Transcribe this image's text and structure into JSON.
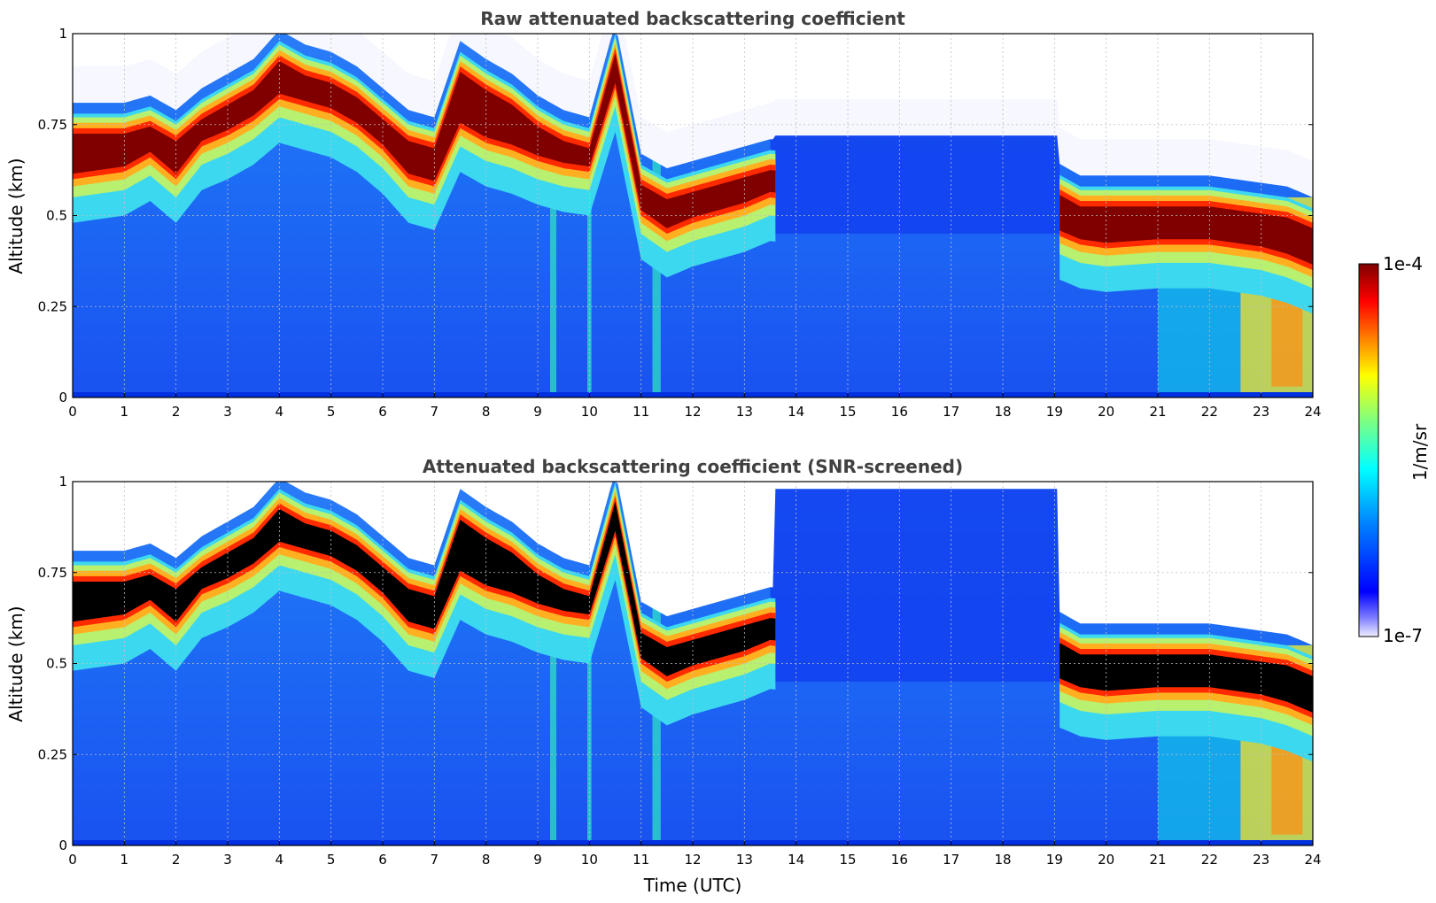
{
  "chart_data": [
    {
      "type": "heatmap",
      "title": "Raw attenuated backscattering coefficient",
      "xlabel": "",
      "ylabel": "Altitude (km)",
      "xlim": [
        0,
        24
      ],
      "ylim": [
        0,
        1
      ],
      "x_ticks": [
        0,
        1,
        2,
        3,
        4,
        5,
        6,
        7,
        8,
        9,
        10,
        11,
        12,
        13,
        14,
        15,
        16,
        17,
        18,
        19,
        20,
        21,
        22,
        23,
        24
      ],
      "y_ticks": [
        "0",
        "0.25",
        "0.5",
        "0.75",
        "1"
      ],
      "grid": true,
      "colorscale": "jet",
      "value_scale": "log",
      "clim": [
        1e-07,
        0.0001
      ],
      "features": {
        "cloud_base_km": {
          "time_utc": [
            0,
            1,
            1.5,
            2,
            2.5,
            3,
            3.5,
            4,
            4.5,
            5,
            5.5,
            6,
            6.5,
            7,
            7.5,
            8,
            8.5,
            9,
            9.5,
            10,
            10.5,
            11,
            11.5,
            12,
            12.5,
            13,
            13.5,
            19,
            19.5,
            20,
            21,
            22,
            23,
            23.5,
            24
          ],
          "altitude": [
            0.6,
            0.62,
            0.66,
            0.6,
            0.69,
            0.72,
            0.76,
            0.82,
            0.8,
            0.78,
            0.74,
            0.68,
            0.6,
            0.58,
            0.74,
            0.7,
            0.68,
            0.65,
            0.63,
            0.62,
            0.85,
            0.5,
            0.45,
            0.48,
            0.5,
            0.52,
            0.55,
            0.45,
            0.42,
            0.41,
            0.42,
            0.42,
            0.4,
            0.38,
            0.35
          ]
        },
        "cloud_top_km": {
          "time_utc": [
            0,
            1,
            1.5,
            2,
            2.5,
            3,
            3.5,
            4,
            4.5,
            5,
            5.5,
            6,
            6.5,
            7,
            7.5,
            8,
            8.5,
            9,
            9.5,
            10,
            10.5,
            11,
            11.5,
            12,
            12.5,
            13,
            13.5,
            19,
            19.5,
            20,
            21,
            22,
            23,
            23.5,
            24
          ],
          "altitude": [
            0.78,
            0.78,
            0.8,
            0.76,
            0.82,
            0.86,
            0.9,
            0.98,
            0.94,
            0.92,
            0.88,
            0.82,
            0.76,
            0.74,
            0.95,
            0.9,
            0.86,
            0.8,
            0.76,
            0.74,
            1.0,
            0.64,
            0.6,
            0.62,
            0.64,
            0.66,
            0.68,
            0.62,
            0.58,
            0.58,
            0.58,
            0.58,
            0.56,
            0.55,
            0.52
          ]
        }
      }
    },
    {
      "type": "heatmap",
      "title": "Attenuated backscattering coefficient (SNR-screened)",
      "xlabel": "Time (UTC)",
      "ylabel": "Altitude (km)",
      "xlim": [
        0,
        24
      ],
      "ylim": [
        0,
        1
      ],
      "x_ticks": [
        0,
        1,
        2,
        3,
        4,
        5,
        6,
        7,
        8,
        9,
        10,
        11,
        12,
        13,
        14,
        15,
        16,
        17,
        18,
        19,
        20,
        21,
        22,
        23,
        24
      ],
      "y_ticks": [
        "0",
        "0.25",
        "0.5",
        "0.75",
        "1"
      ],
      "grid": true,
      "colorscale": "jet",
      "value_scale": "log",
      "clim": [
        1e-07,
        0.0001
      ],
      "saturated_color": "#000000"
    }
  ],
  "colorbar": {
    "label": "1/m/sr",
    "max_label": "1e-4",
    "min_label": "1e-7",
    "colors": [
      "#efefff",
      "#7d7dff",
      "#0000ff",
      "#0080ff",
      "#00ffff",
      "#7fff80",
      "#ffff00",
      "#ff8000",
      "#ff0000",
      "#800000"
    ]
  }
}
